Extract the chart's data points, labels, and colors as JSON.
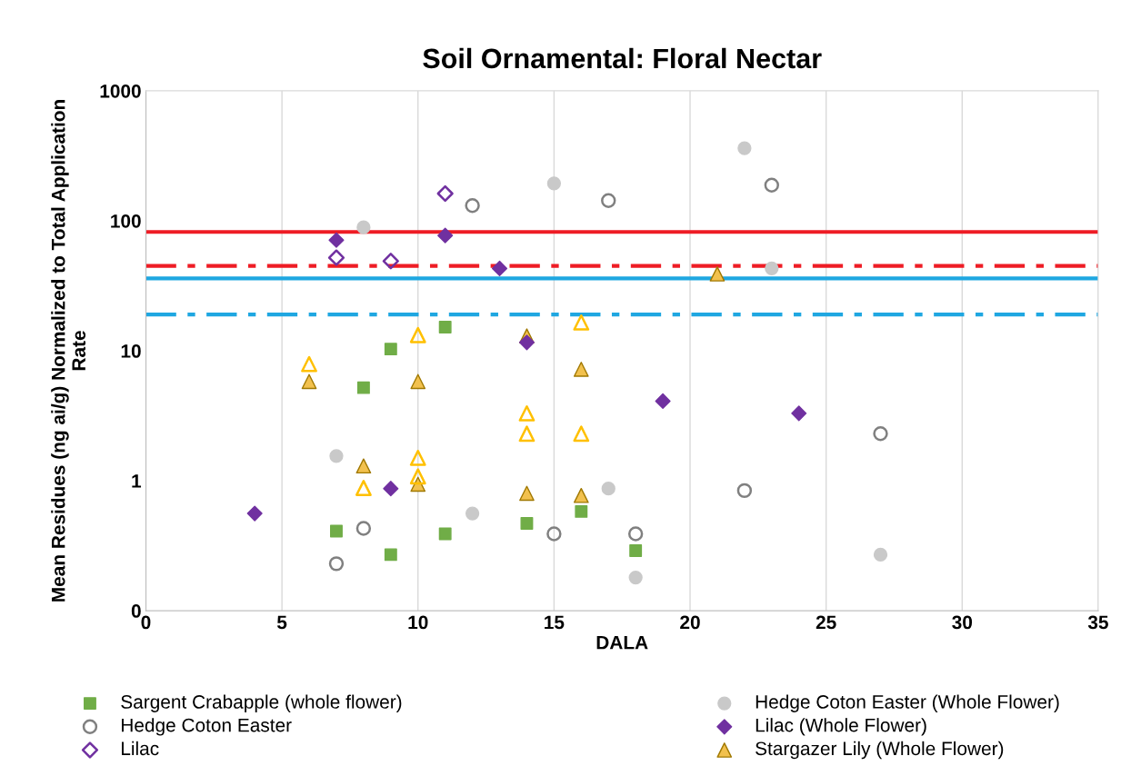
{
  "chart_data": {
    "type": "scatter",
    "title": "Soil Ornamental: Floral Nectar",
    "xlabel": "DALA",
    "ylabel": "Mean Residues (ng ai/g) Normalized to Total Application\nRate",
    "log": "y",
    "xlim": [
      0,
      35
    ],
    "xticks": [
      0,
      5,
      10,
      15,
      20,
      25,
      30,
      35
    ],
    "ylim": [
      0.1,
      1000
    ],
    "yticks": [
      {
        "value": 0.1,
        "label": "0"
      },
      1,
      10,
      100,
      1000
    ],
    "grid": "x",
    "legend": "bottom",
    "series": [
      {
        "name": "Sargent Crabapple (whole flower)",
        "color": "#70ad47",
        "marker": "square",
        "x": [
          7,
          8,
          9,
          9,
          11,
          11,
          14,
          16,
          18
        ],
        "values": [
          0.41,
          5.2,
          10.3,
          0.27,
          15.2,
          0.39,
          0.47,
          0.58,
          0.29
        ]
      },
      {
        "name": "Hedge Coton Easter (Whole Flower)",
        "color": "#c9c9c9",
        "marker": "circle",
        "x": [
          7,
          8,
          12,
          15,
          17,
          18,
          22,
          23,
          27
        ],
        "values": [
          1.55,
          89,
          0.56,
          194,
          0.87,
          0.18,
          362,
          43,
          0.27
        ]
      },
      {
        "name": "Hedge Coton Easter",
        "color": "#808080",
        "marker": "circle-open",
        "x": [
          7,
          8,
          12,
          15,
          17,
          18,
          22,
          23,
          27
        ],
        "values": [
          0.23,
          0.43,
          131,
          0.39,
          143,
          0.39,
          0.84,
          188,
          2.3
        ]
      },
      {
        "name": "Lilac (Whole Flower)",
        "color": "#7030a0",
        "marker": "diamond",
        "x": [
          4,
          7,
          9,
          11,
          13,
          14,
          19,
          24
        ],
        "values": [
          0.56,
          71,
          0.87,
          77,
          43,
          11.6,
          4.1,
          3.3
        ]
      },
      {
        "name": "Lilac",
        "color": "#7030a0",
        "marker": "diamond-open",
        "x": [
          7,
          9,
          11
        ],
        "values": [
          52,
          49,
          162
        ]
      },
      {
        "name": "Stargazer Lily (Whole Flower)",
        "color": "#f2c14e",
        "marker": "triangle",
        "x": [
          6,
          8,
          10,
          10,
          14,
          14,
          16,
          16,
          21
        ],
        "values": [
          5.8,
          1.3,
          5.8,
          0.94,
          0.8,
          13,
          7.2,
          0.77,
          39
        ]
      },
      {
        "color": "#ffc000",
        "marker": "triangle-open",
        "x": [
          6,
          8,
          10,
          10,
          10,
          14,
          14,
          16,
          16
        ],
        "values": [
          7.9,
          0.88,
          13.2,
          1.5,
          1.08,
          3.3,
          2.3,
          16.5,
          2.3
        ]
      }
    ],
    "ref_lines": [
      {
        "axis": "y",
        "value": 82,
        "color": "#ee1c25",
        "line_style": "solid"
      },
      {
        "axis": "y",
        "value": 45,
        "color": "#ee1c25",
        "line_style": "dashdot"
      },
      {
        "axis": "y",
        "value": 36,
        "color": "#1fa7e1",
        "line_style": "solid"
      },
      {
        "axis": "y",
        "value": 19,
        "color": "#1fa7e1",
        "line_style": "dashdot"
      }
    ]
  }
}
